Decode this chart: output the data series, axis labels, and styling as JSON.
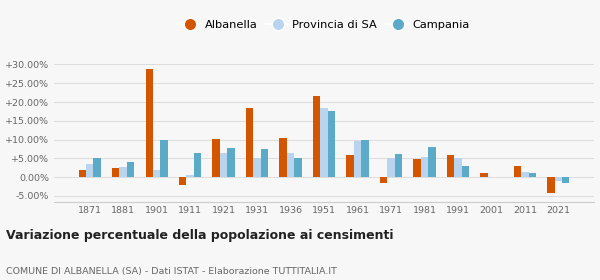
{
  "years": [
    1871,
    1881,
    1901,
    1911,
    1921,
    1931,
    1936,
    1951,
    1961,
    1971,
    1981,
    1991,
    2001,
    2011,
    2021
  ],
  "albanella": [
    2.0,
    2.5,
    28.8,
    -2.2,
    10.2,
    18.5,
    10.5,
    21.5,
    6.0,
    -1.5,
    4.8,
    6.0,
    1.2,
    3.0,
    -4.2
  ],
  "provincia_sa": [
    3.5,
    2.8,
    2.0,
    0.5,
    6.5,
    5.0,
    6.5,
    18.5,
    9.5,
    5.0,
    5.5,
    5.0,
    0.0,
    1.5,
    -1.0
  ],
  "campania": [
    5.0,
    4.0,
    9.8,
    6.5,
    7.8,
    7.5,
    5.2,
    17.5,
    9.8,
    6.2,
    8.0,
    3.0,
    0.0,
    1.0,
    -1.5
  ],
  "albanella_color": "#d45500",
  "provincia_color": "#b8d4ee",
  "campania_color": "#5aaac8",
  "background_color": "#f7f7f7",
  "grid_color": "#dddddd",
  "title": "Variazione percentuale della popolazione ai censimenti",
  "subtitle": "COMUNE DI ALBANELLA (SA) - Dati ISTAT - Elaborazione TUTTITALIA.IT",
  "ylim": [
    -6.5,
    33
  ],
  "yticks": [
    -5,
    0,
    5,
    10,
    15,
    20,
    25,
    30
  ]
}
